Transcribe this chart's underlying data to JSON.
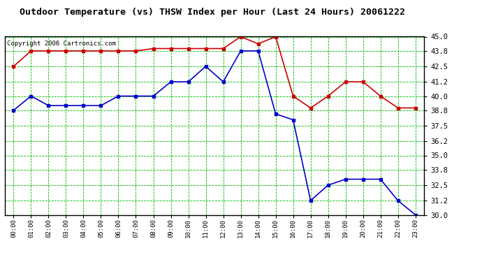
{
  "title": "Outdoor Temperature (vs) THSW Index per Hour (Last 24 Hours) 20061222",
  "copyright_text": "Copyright 2006 Cartronics.com",
  "hours": [
    "00:00",
    "01:00",
    "02:00",
    "03:00",
    "04:00",
    "05:00",
    "06:00",
    "07:00",
    "08:00",
    "09:00",
    "10:00",
    "11:00",
    "12:00",
    "13:00",
    "14:00",
    "15:00",
    "16:00",
    "17:00",
    "18:00",
    "19:00",
    "20:00",
    "21:00",
    "22:00",
    "23:00"
  ],
  "red_data": [
    42.5,
    43.8,
    43.8,
    43.8,
    43.8,
    43.8,
    43.8,
    43.8,
    44.0,
    44.0,
    44.0,
    44.0,
    44.0,
    45.0,
    44.4,
    45.0,
    40.0,
    39.0,
    40.0,
    41.2,
    41.2,
    40.0,
    39.0,
    39.0
  ],
  "blue_data": [
    38.8,
    40.0,
    39.2,
    39.2,
    39.2,
    39.2,
    40.0,
    40.0,
    40.0,
    41.2,
    41.2,
    42.5,
    41.2,
    43.8,
    43.8,
    38.5,
    38.0,
    31.2,
    32.5,
    33.0,
    33.0,
    33.0,
    31.2,
    30.0
  ],
  "ylim": [
    30.0,
    45.0
  ],
  "yticks": [
    30.0,
    31.2,
    32.5,
    33.8,
    35.0,
    36.2,
    37.5,
    38.8,
    40.0,
    41.2,
    42.5,
    43.8,
    45.0
  ],
  "red_color": "#cc0000",
  "blue_color": "#0000cc",
  "bg_color": "#ffffff",
  "grid_color": "#00bb00",
  "title_fontsize": 9.5,
  "copyright_fontsize": 6.5
}
